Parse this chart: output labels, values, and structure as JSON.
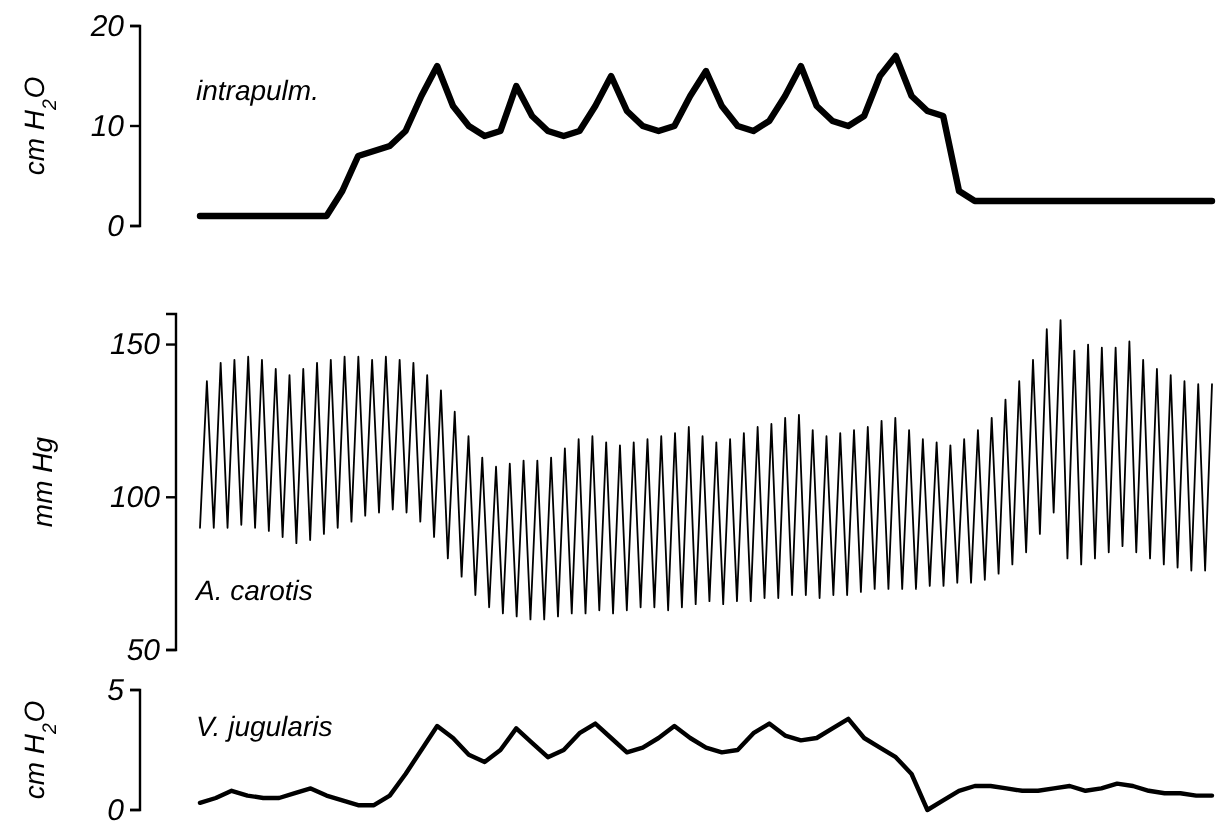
{
  "chart_data": [
    {
      "type": "line",
      "ylabel": "cm H$_{2}$O",
      "annotations": [
        "intrapulm."
      ],
      "ylim": [
        0,
        20
      ],
      "yticks": [
        0,
        10,
        20
      ],
      "grid": false,
      "categories": [
        null,
        null,
        null,
        null,
        null,
        null,
        null,
        null,
        null,
        null,
        null,
        null,
        null,
        null,
        null,
        null,
        null,
        null,
        null,
        null,
        null,
        null,
        null,
        null,
        null,
        null,
        null,
        null,
        null,
        null,
        null,
        null,
        null,
        null,
        null,
        null,
        null,
        null,
        null,
        null,
        null,
        null,
        null,
        null,
        null,
        null,
        null,
        null,
        null,
        null,
        null,
        null,
        null,
        null,
        null,
        null,
        null,
        null,
        null,
        null,
        null,
        null,
        null,
        null,
        null
      ],
      "series": [
        {
          "color": "#000000",
          "values": [
            1,
            1,
            1,
            1,
            1,
            1,
            1,
            1,
            1,
            3.5,
            7,
            7.5,
            8,
            9.5,
            13,
            16,
            12,
            10,
            9,
            9.5,
            14,
            11,
            9.5,
            9,
            9.5,
            12,
            15,
            11.5,
            10,
            9.5,
            10,
            13,
            15.5,
            12,
            10,
            9.5,
            10.5,
            13,
            16,
            12,
            10.5,
            10,
            11,
            15,
            17,
            13,
            11.5,
            11,
            3.5,
            2.5,
            2.5,
            2.5,
            2.5,
            2.5,
            2.5,
            2.5,
            2.5,
            2.5,
            2.5,
            2.5,
            2.5,
            2.5,
            2.5,
            2.5,
            2.5
          ]
        }
      ]
    },
    {
      "type": "line",
      "ylabel": "mm Hg",
      "annotations": [
        "A. carotis"
      ],
      "ylim": [
        50,
        160
      ],
      "yticks": [
        50,
        100,
        150
      ],
      "grid": false,
      "categories": [
        null,
        null,
        null,
        null,
        null,
        null,
        null,
        null,
        null,
        null,
        null,
        null,
        null,
        null,
        null,
        null,
        null,
        null,
        null,
        null,
        null,
        null,
        null,
        null,
        null,
        null,
        null,
        null,
        null,
        null,
        null,
        null,
        null,
        null,
        null,
        null,
        null,
        null,
        null,
        null,
        null,
        null,
        null,
        null,
        null,
        null,
        null,
        null,
        null,
        null,
        null,
        null,
        null,
        null,
        null,
        null,
        null,
        null,
        null,
        null,
        null,
        null,
        null,
        null,
        null,
        null,
        null,
        null,
        null,
        null,
        null,
        null,
        null,
        null,
        null,
        null,
        null,
        null,
        null,
        null,
        null,
        null,
        null,
        null,
        null,
        null,
        null,
        null,
        null,
        null,
        null,
        null,
        null,
        null,
        null,
        null,
        null,
        null,
        null,
        null,
        null,
        null,
        null,
        null,
        null,
        null,
        null,
        null,
        null,
        null,
        null,
        null,
        null,
        null,
        null,
        null,
        null,
        null,
        null,
        null,
        null,
        null,
        null,
        null,
        null,
        null,
        null,
        null,
        null,
        null,
        null,
        null,
        null,
        null,
        null,
        null,
        null,
        null,
        null,
        null,
        null,
        null,
        null,
        null,
        null,
        null,
        null,
        null
      ],
      "series": [
        {
          "color": "#000000",
          "values": [
            90,
            138,
            90,
            144,
            90,
            145,
            91,
            146,
            90,
            145,
            89,
            142,
            87,
            140,
            85,
            142,
            86,
            144,
            88,
            145,
            90,
            146,
            92,
            146,
            94,
            145,
            95,
            146,
            96,
            145,
            95,
            144,
            92,
            140,
            87,
            135,
            80,
            128,
            74,
            120,
            68,
            113,
            64,
            110,
            62,
            111,
            61,
            112,
            60,
            112,
            60,
            113,
            61,
            116,
            62,
            119,
            62,
            120,
            63,
            118,
            62,
            117,
            63,
            118,
            64,
            119,
            64,
            120,
            63,
            121,
            64,
            123,
            65,
            120,
            66,
            118,
            65,
            119,
            66,
            121,
            66,
            123,
            67,
            124,
            67,
            126,
            68,
            127,
            68,
            122,
            67,
            120,
            68,
            121,
            68,
            122,
            69,
            123,
            70,
            125,
            70,
            126,
            70,
            122,
            70,
            119,
            71,
            118,
            71,
            117,
            72,
            119,
            72,
            122,
            73,
            126,
            75,
            132,
            78,
            138,
            82,
            145,
            88,
            155,
            95,
            158,
            80,
            148,
            78,
            150,
            80,
            149,
            82,
            149,
            84,
            151,
            82,
            145,
            80,
            142,
            78,
            140,
            77,
            138,
            76,
            137,
            76,
            137
          ]
        }
      ]
    },
    {
      "type": "line",
      "ylabel": "cm H$_{2}$O",
      "annotations": [
        "V. jugularis"
      ],
      "ylim": [
        0,
        5
      ],
      "yticks": [
        0,
        5
      ],
      "grid": false,
      "categories": [
        null,
        null,
        null,
        null,
        null,
        null,
        null,
        null,
        null,
        null,
        null,
        null,
        null,
        null,
        null,
        null,
        null,
        null,
        null,
        null,
        null,
        null,
        null,
        null,
        null,
        null,
        null,
        null,
        null,
        null,
        null,
        null,
        null,
        null,
        null,
        null,
        null,
        null,
        null,
        null,
        null,
        null,
        null,
        null,
        null,
        null,
        null,
        null,
        null,
        null,
        null,
        null,
        null,
        null,
        null,
        null,
        null,
        null,
        null,
        null,
        null,
        null,
        null,
        null,
        null
      ],
      "series": [
        {
          "color": "#000000",
          "values": [
            0.3,
            0.5,
            0.8,
            0.6,
            0.5,
            0.5,
            0.7,
            0.9,
            0.6,
            0.4,
            0.2,
            0.2,
            0.6,
            1.5,
            2.5,
            3.5,
            3,
            2.3,
            2,
            2.5,
            3.4,
            2.8,
            2.2,
            2.5,
            3.2,
            3.6,
            3,
            2.4,
            2.6,
            3,
            3.5,
            3,
            2.6,
            2.4,
            2.5,
            3.2,
            3.6,
            3.1,
            2.9,
            3,
            3.4,
            3.8,
            3,
            2.6,
            2.2,
            1.5,
            0,
            0.4,
            0.8,
            1,
            1,
            0.9,
            0.8,
            0.8,
            0.9,
            1,
            0.8,
            0.9,
            1.1,
            1,
            0.8,
            0.7,
            0.7,
            0.6,
            0.6
          ]
        }
      ]
    }
  ]
}
